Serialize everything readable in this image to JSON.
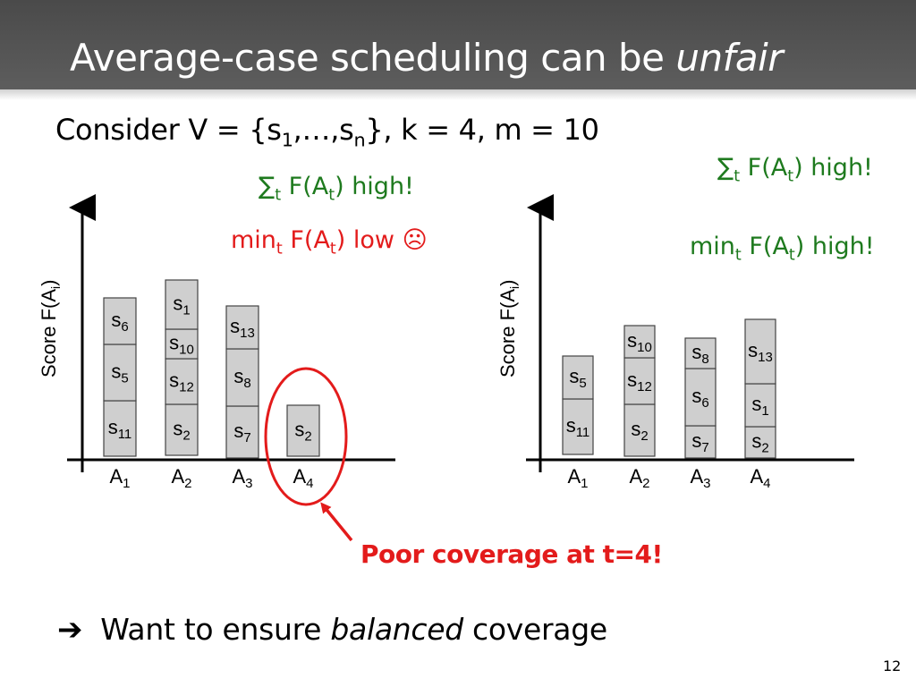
{
  "slide": {
    "title_main": "Average-case scheduling can be ",
    "title_italic": "unfair",
    "consider": {
      "prefix": "Consider V = {s",
      "sub1": "1",
      "mid": ",…,s",
      "subn": "n",
      "suffix": "}, k = 4, m = 10"
    },
    "left_sum": {
      "sigma": "∑",
      "sub_t": "t",
      "text1": " F(A",
      "text2": ") high!"
    },
    "left_min": {
      "text0": "min",
      "sub_t": "t",
      "text1": " F(A",
      "text2": ") low ",
      "face": "☹"
    },
    "right_sum": {
      "sigma": "∑",
      "sub_t": "t",
      "text1": " F(A",
      "text2": ") high!"
    },
    "right_min": {
      "text0": "min",
      "sub_t": "t",
      "text1": " F(A",
      "text2": ") high!"
    },
    "poor_coverage": "Poor coverage at t=4!",
    "want_prefix": "Want to ensure ",
    "want_italic": "balanced",
    "want_suffix": " coverage",
    "page_number": "12"
  },
  "colors": {
    "title_bar": "#4a4a4a",
    "green": "#1e7a1e",
    "red": "#e31b1b",
    "block_fill": "#cfcfcf"
  },
  "chart_data": [
    {
      "type": "bar",
      "ylabel": "Score F(A",
      "ylabel_sub": "i",
      "ylabel_close": ")",
      "categories": [
        {
          "base": "A",
          "sub": "1"
        },
        {
          "base": "A",
          "sub": "2"
        },
        {
          "base": "A",
          "sub": "3"
        },
        {
          "base": "A",
          "sub": "4"
        }
      ],
      "stacks": [
        [
          {
            "base": "s",
            "sub": "11"
          },
          {
            "base": "s",
            "sub": "5"
          },
          {
            "base": "s",
            "sub": "6"
          }
        ],
        [
          {
            "base": "s",
            "sub": "2"
          },
          {
            "base": "s",
            "sub": "12"
          },
          {
            "base": "s",
            "sub": "10"
          },
          {
            "base": "s",
            "sub": "1"
          }
        ],
        [
          {
            "base": "s",
            "sub": "7"
          },
          {
            "base": "s",
            "sub": "8"
          },
          {
            "base": "s",
            "sub": "13"
          }
        ],
        [
          {
            "base": "s",
            "sub": "2"
          }
        ]
      ],
      "highlight_category": 3
    },
    {
      "type": "bar",
      "ylabel": "Score F(A",
      "ylabel_sub": "i",
      "ylabel_close": ")",
      "categories": [
        {
          "base": "A",
          "sub": "1"
        },
        {
          "base": "A",
          "sub": "2"
        },
        {
          "base": "A",
          "sub": "3"
        },
        {
          "base": "A",
          "sub": "4"
        }
      ],
      "stacks": [
        [
          {
            "base": "s",
            "sub": "11"
          },
          {
            "base": "s",
            "sub": "5"
          }
        ],
        [
          {
            "base": "s",
            "sub": "2"
          },
          {
            "base": "s",
            "sub": "12"
          },
          {
            "base": "s",
            "sub": "10"
          }
        ],
        [
          {
            "base": "s",
            "sub": "7"
          },
          {
            "base": "s",
            "sub": "6"
          },
          {
            "base": "s",
            "sub": "8"
          }
        ],
        [
          {
            "base": "s",
            "sub": "2"
          },
          {
            "base": "s",
            "sub": "1"
          },
          {
            "base": "s",
            "sub": "13"
          }
        ]
      ]
    }
  ]
}
